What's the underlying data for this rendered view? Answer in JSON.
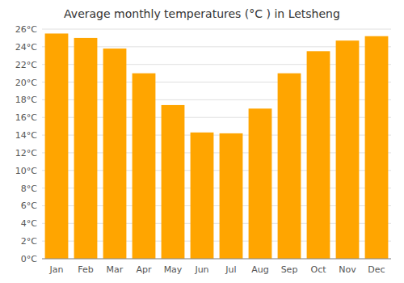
{
  "chart_data": {
    "type": "bar",
    "title": "Average monthly temperatures (°C ) in Letsheng",
    "categories": [
      "Jan",
      "Feb",
      "Mar",
      "Apr",
      "May",
      "Jun",
      "Jul",
      "Aug",
      "Sep",
      "Oct",
      "Nov",
      "Dec"
    ],
    "values": [
      25.5,
      25.0,
      23.8,
      21.0,
      17.4,
      14.3,
      14.2,
      17.0,
      21.0,
      23.5,
      24.7,
      25.2
    ],
    "color": "#FFA500",
    "ylim": [
      0,
      26
    ],
    "yticks": [
      {
        "value": 0,
        "label": "0°C"
      },
      {
        "value": 2,
        "label": "2°C"
      },
      {
        "value": 4,
        "label": "4°C"
      },
      {
        "value": 6,
        "label": "6°C"
      },
      {
        "value": 8,
        "label": "8°C"
      },
      {
        "value": 10,
        "label": "10°C"
      },
      {
        "value": 12,
        "label": "12°C"
      },
      {
        "value": 14,
        "label": "14°C"
      },
      {
        "value": 16,
        "label": "16°C"
      },
      {
        "value": 18,
        "label": "18°C"
      },
      {
        "value": 20,
        "label": "20°C"
      },
      {
        "value": 22,
        "label": "22°C"
      },
      {
        "value": 24,
        "label": "24°C"
      },
      {
        "value": 26,
        "label": "26°C"
      }
    ],
    "grid": true
  }
}
